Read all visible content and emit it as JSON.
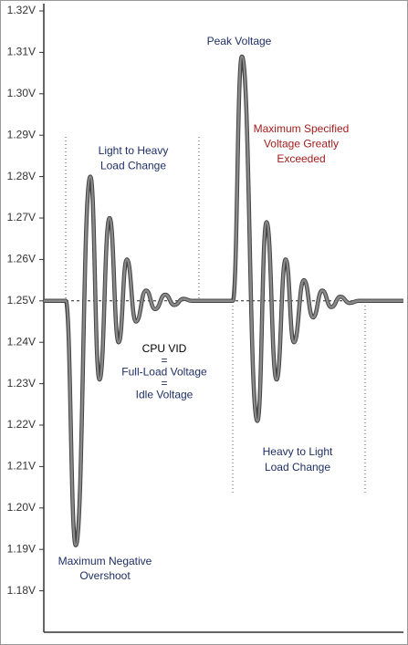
{
  "chart_data": {
    "type": "line",
    "x": [
      0,
      24,
      35,
      51,
      61,
      72,
      82,
      91,
      101,
      112,
      122,
      133,
      143,
      153,
      162,
      207,
      217,
      234,
      244,
      255,
      265,
      274,
      285,
      295,
      305,
      315,
      325,
      335,
      345,
      394
    ],
    "values": [
      1.25,
      1.25,
      1.191,
      1.28,
      1.231,
      1.27,
      1.24,
      1.26,
      1.245,
      1.2525,
      1.248,
      1.2515,
      1.249,
      1.2505,
      1.25,
      1.25,
      1.309,
      1.221,
      1.269,
      1.231,
      1.26,
      1.24,
      1.255,
      1.246,
      1.2525,
      1.2485,
      1.251,
      1.2495,
      1.25,
      1.25
    ],
    "color": "#8a8a8a",
    "xlim": [
      0,
      394
    ],
    "ylim": [
      1.17,
      1.32
    ],
    "yticks": [
      {
        "value": 1.18,
        "label": "1.18V"
      },
      {
        "value": 1.19,
        "label": "1.19V"
      },
      {
        "value": 1.2,
        "label": "1.20V"
      },
      {
        "value": 1.21,
        "label": "1.21V"
      },
      {
        "value": 1.22,
        "label": "1.22V"
      },
      {
        "value": 1.23,
        "label": "1.23V"
      },
      {
        "value": 1.24,
        "label": "1.24V"
      },
      {
        "value": 1.25,
        "label": "1.25V"
      },
      {
        "value": 1.26,
        "label": "1.26V"
      },
      {
        "value": 1.27,
        "label": "1.27V"
      },
      {
        "value": 1.28,
        "label": "1.28V"
      },
      {
        "value": 1.29,
        "label": "1.29V"
      },
      {
        "value": 1.3,
        "label": "1.30V"
      },
      {
        "value": 1.31,
        "label": "1.31V"
      },
      {
        "value": 1.32,
        "label": "1.32V"
      }
    ],
    "reference_line": 1.25,
    "regions": [
      {
        "x": [
          24,
          170
        ]
      },
      {
        "x": [
          207,
          352
        ]
      }
    ],
    "annotations": [
      {
        "lines": [
          "Peak Voltage"
        ],
        "color": "#1f2f66"
      },
      {
        "lines": [
          "Maximum Specified",
          "Voltage Greatly",
          "Exceeded"
        ],
        "color": "#a31c1c"
      },
      {
        "lines": [
          "Light to Heavy",
          "Load Change"
        ],
        "color": "#1f2f66"
      },
      {
        "lines": [
          "CPU VID"
        ],
        "color": "#000000"
      },
      {
        "lines": [
          "=",
          "Full-Load Voltage",
          "=",
          "Idle Voltage"
        ],
        "color": "#1f2f66"
      },
      {
        "lines": [
          "Heavy to Light",
          "Load Change"
        ],
        "color": "#1f2f66"
      },
      {
        "lines": [
          "Maximum Negative",
          "Overshoot"
        ],
        "color": "#1f2f66"
      }
    ]
  }
}
